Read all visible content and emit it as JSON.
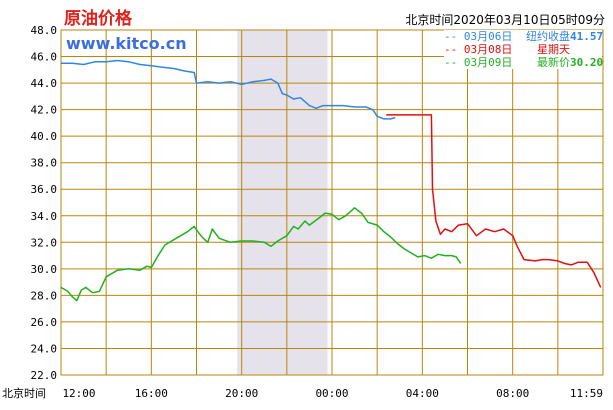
{
  "header": {
    "title": "原油价格",
    "timestamp": "北京时间2020年03月10日05时09分",
    "site": "www.kitco.cn"
  },
  "colors": {
    "grid": "#b8860b",
    "shade": "#e6e2ec",
    "blue": "#2e86e6",
    "red": "#e01010",
    "green": "#22b022",
    "title": "#e0221b",
    "site": "#3b6fe0"
  },
  "legend": [
    {
      "date": "-- 03月06日",
      "label": "纽约收盘",
      "value": "41.57",
      "color": "#2e86e6"
    },
    {
      "date": "-- 03月08日",
      "label": "星期天",
      "value": "",
      "color": "#e01010"
    },
    {
      "date": "-- 03月09日",
      "label": "最新价",
      "value": "30.20",
      "color": "#22b022"
    }
  ],
  "chart_data": {
    "type": "line",
    "xlabel": "北京时间",
    "x_ticks": [
      "12:00",
      "16:00",
      "20:00",
      "00:00",
      "04:00",
      "08:00",
      "11:59"
    ],
    "y_ticks": [
      "48.0",
      "46.0",
      "44.0",
      "42.0",
      "40.0",
      "38.0",
      "36.0",
      "34.0",
      "32.0",
      "30.0",
      "28.0",
      "26.0",
      "24.0",
      "22.0"
    ],
    "ylim": [
      22,
      48
    ],
    "xlim_hours": [
      0,
      24
    ],
    "grid": true,
    "legend_position": "top-right",
    "shaded_range_hours": [
      7.8,
      11.8
    ],
    "series": [
      {
        "name": "03月06日",
        "color": "#2e86e6",
        "points": [
          [
            0,
            45.5
          ],
          [
            0.5,
            45.5
          ],
          [
            1,
            45.4
          ],
          [
            1.5,
            45.6
          ],
          [
            2,
            45.6
          ],
          [
            2.5,
            45.7
          ],
          [
            3,
            45.6
          ],
          [
            3.5,
            45.4
          ],
          [
            4,
            45.3
          ],
          [
            4.5,
            45.2
          ],
          [
            5,
            45.1
          ],
          [
            5.5,
            44.9
          ],
          [
            5.9,
            44.8
          ],
          [
            6,
            44.0
          ],
          [
            6.5,
            44.1
          ],
          [
            7,
            44.0
          ],
          [
            7.5,
            44.1
          ],
          [
            8,
            43.9
          ],
          [
            8.5,
            44.1
          ],
          [
            9,
            44.2
          ],
          [
            9.3,
            44.3
          ],
          [
            9.6,
            44.0
          ],
          [
            9.8,
            43.2
          ],
          [
            10,
            43.1
          ],
          [
            10.3,
            42.8
          ],
          [
            10.6,
            42.9
          ],
          [
            11,
            42.3
          ],
          [
            11.3,
            42.1
          ],
          [
            11.6,
            42.3
          ],
          [
            12,
            42.3
          ],
          [
            12.5,
            42.3
          ],
          [
            13,
            42.2
          ],
          [
            13.5,
            42.2
          ],
          [
            13.8,
            42.0
          ],
          [
            14,
            41.5
          ],
          [
            14.3,
            41.3
          ],
          [
            14.6,
            41.3
          ],
          [
            14.8,
            41.4
          ]
        ]
      },
      {
        "name": "03月08日",
        "color": "#e01010",
        "points": [
          [
            14.4,
            41.6
          ],
          [
            15,
            41.6
          ],
          [
            15.5,
            41.6
          ],
          [
            16,
            41.6
          ],
          [
            16.4,
            41.6
          ],
          [
            16.45,
            36.0
          ],
          [
            16.6,
            33.6
          ],
          [
            16.8,
            32.6
          ],
          [
            17,
            33.0
          ],
          [
            17.3,
            32.8
          ],
          [
            17.6,
            33.3
          ],
          [
            18,
            33.4
          ],
          [
            18.4,
            32.5
          ],
          [
            18.8,
            33.0
          ],
          [
            19.2,
            32.8
          ],
          [
            19.6,
            33.0
          ],
          [
            20,
            32.5
          ],
          [
            20.2,
            31.7
          ],
          [
            20.5,
            30.7
          ],
          [
            21,
            30.6
          ],
          [
            21.3,
            30.7
          ],
          [
            21.6,
            30.7
          ],
          [
            22,
            30.6
          ],
          [
            22.3,
            30.4
          ],
          [
            22.6,
            30.3
          ],
          [
            22.9,
            30.5
          ],
          [
            23.3,
            30.5
          ],
          [
            23.6,
            29.7
          ],
          [
            23.9,
            28.6
          ]
        ]
      },
      {
        "name": "03月09日",
        "color": "#22b022",
        "points": [
          [
            0,
            28.6
          ],
          [
            0.3,
            28.3
          ],
          [
            0.5,
            27.9
          ],
          [
            0.7,
            27.6
          ],
          [
            0.9,
            28.4
          ],
          [
            1.1,
            28.6
          ],
          [
            1.4,
            28.2
          ],
          [
            1.7,
            28.3
          ],
          [
            2,
            29.4
          ],
          [
            2.5,
            29.9
          ],
          [
            3,
            30.0
          ],
          [
            3.5,
            29.9
          ],
          [
            3.8,
            30.2
          ],
          [
            4,
            30.1
          ],
          [
            4.3,
            31.0
          ],
          [
            4.6,
            31.8
          ],
          [
            5,
            32.2
          ],
          [
            5.3,
            32.5
          ],
          [
            5.6,
            32.8
          ],
          [
            5.9,
            33.2
          ],
          [
            6.1,
            32.7
          ],
          [
            6.3,
            32.3
          ],
          [
            6.5,
            32.0
          ],
          [
            6.7,
            33.0
          ],
          [
            7,
            32.3
          ],
          [
            7.5,
            32.0
          ],
          [
            8,
            32.1
          ],
          [
            8.5,
            32.1
          ],
          [
            9,
            32.0
          ],
          [
            9.3,
            31.7
          ],
          [
            9.6,
            32.1
          ],
          [
            10,
            32.5
          ],
          [
            10.3,
            33.2
          ],
          [
            10.5,
            33.0
          ],
          [
            10.8,
            33.6
          ],
          [
            11,
            33.3
          ],
          [
            11.4,
            33.8
          ],
          [
            11.7,
            34.2
          ],
          [
            12,
            34.1
          ],
          [
            12.3,
            33.7
          ],
          [
            12.6,
            34.0
          ],
          [
            13,
            34.6
          ],
          [
            13.3,
            34.2
          ],
          [
            13.6,
            33.5
          ],
          [
            14,
            33.3
          ],
          [
            14.3,
            32.8
          ],
          [
            14.6,
            32.4
          ],
          [
            14.9,
            31.9
          ],
          [
            15.2,
            31.5
          ],
          [
            15.5,
            31.2
          ],
          [
            15.8,
            30.9
          ],
          [
            16.1,
            31.0
          ],
          [
            16.4,
            30.8
          ],
          [
            16.7,
            31.1
          ],
          [
            17,
            31.0
          ],
          [
            17.3,
            31.0
          ],
          [
            17.5,
            30.9
          ],
          [
            17.7,
            30.4
          ]
        ]
      }
    ]
  }
}
